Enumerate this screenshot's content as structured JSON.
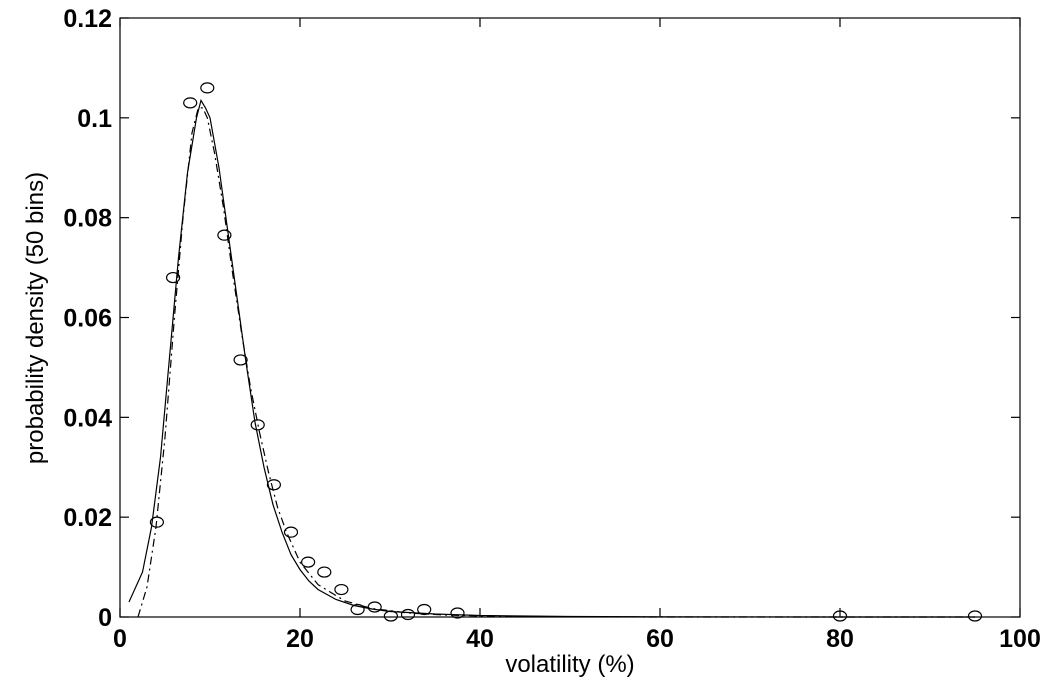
{
  "chart_data": {
    "type": "line",
    "title": "",
    "xlabel": "volatility (%)",
    "ylabel": "probability density (50 bins)",
    "xlim": [
      0,
      100
    ],
    "ylim": [
      0,
      0.12
    ],
    "x_ticks": [
      0,
      20,
      40,
      60,
      80,
      100
    ],
    "x_tick_labels": [
      "0",
      "20",
      "40",
      "60",
      "80",
      "100"
    ],
    "y_ticks": [
      0,
      0.02,
      0.04,
      0.06,
      0.08,
      0.1,
      0.12
    ],
    "y_tick_labels": [
      "0",
      "0.02",
      "0.04",
      "0.06",
      "0.08",
      "0.1",
      "0.12"
    ],
    "grid": false,
    "legend": null,
    "series": [
      {
        "style": "circle-markers",
        "color": "#000000",
        "x": [
          4.1,
          5.9,
          7.8,
          9.7,
          11.6,
          13.4,
          15.3,
          17.1,
          19.0,
          20.9,
          22.7,
          24.6,
          26.4,
          28.3,
          30.1,
          32.0,
          33.8,
          37.5,
          80.0,
          95.0
        ],
        "y": [
          0.019,
          0.068,
          0.103,
          0.106,
          0.0765,
          0.0515,
          0.0385,
          0.0265,
          0.017,
          0.011,
          0.009,
          0.0055,
          0.0015,
          0.002,
          0.0002,
          0.0005,
          0.0015,
          0.0008,
          0.0002,
          0.0002
        ]
      },
      {
        "style": "solid",
        "color": "#000000",
        "x": [
          1,
          2.5,
          3.5,
          4.5,
          5.5,
          6.5,
          7.5,
          8.5,
          9.0,
          9.5,
          10.0,
          11.0,
          12.0,
          13.0,
          14.0,
          15.0,
          16.0,
          17.0,
          18.0,
          19.0,
          20.0,
          21.0,
          22.0,
          24.0,
          26.0,
          28.0,
          30.0,
          35.0,
          40.0,
          50.0,
          60.0,
          80.0,
          95.0
        ],
        "y": [
          0.003,
          0.009,
          0.018,
          0.032,
          0.052,
          0.072,
          0.089,
          0.1,
          0.1035,
          0.102,
          0.1,
          0.09,
          0.077,
          0.064,
          0.051,
          0.039,
          0.03,
          0.0225,
          0.017,
          0.0125,
          0.0095,
          0.0072,
          0.0055,
          0.0035,
          0.0023,
          0.0016,
          0.0011,
          0.0006,
          0.0003,
          0.0001,
          5e-05,
          0.0,
          0.0
        ]
      },
      {
        "style": "dash-dot",
        "color": "#000000",
        "x": [
          2.0,
          3.0,
          4.0,
          5.0,
          6.0,
          7.0,
          8.0,
          8.7,
          9.2,
          9.7,
          10.5,
          11.5,
          12.5,
          13.5,
          14.5,
          15.5,
          16.5,
          17.5,
          18.5,
          20.0,
          22.0,
          25.0,
          28.0,
          32.0,
          36.0,
          40.0,
          50.0,
          60.0,
          80.0,
          95.0
        ],
        "y": [
          0.0,
          0.006,
          0.018,
          0.036,
          0.059,
          0.08,
          0.097,
          0.102,
          0.102,
          0.1,
          0.093,
          0.082,
          0.069,
          0.057,
          0.046,
          0.037,
          0.029,
          0.022,
          0.017,
          0.011,
          0.0065,
          0.0032,
          0.0017,
          0.0008,
          0.0004,
          0.0002,
          5e-05,
          0.0,
          0.0,
          0.0
        ]
      }
    ]
  }
}
